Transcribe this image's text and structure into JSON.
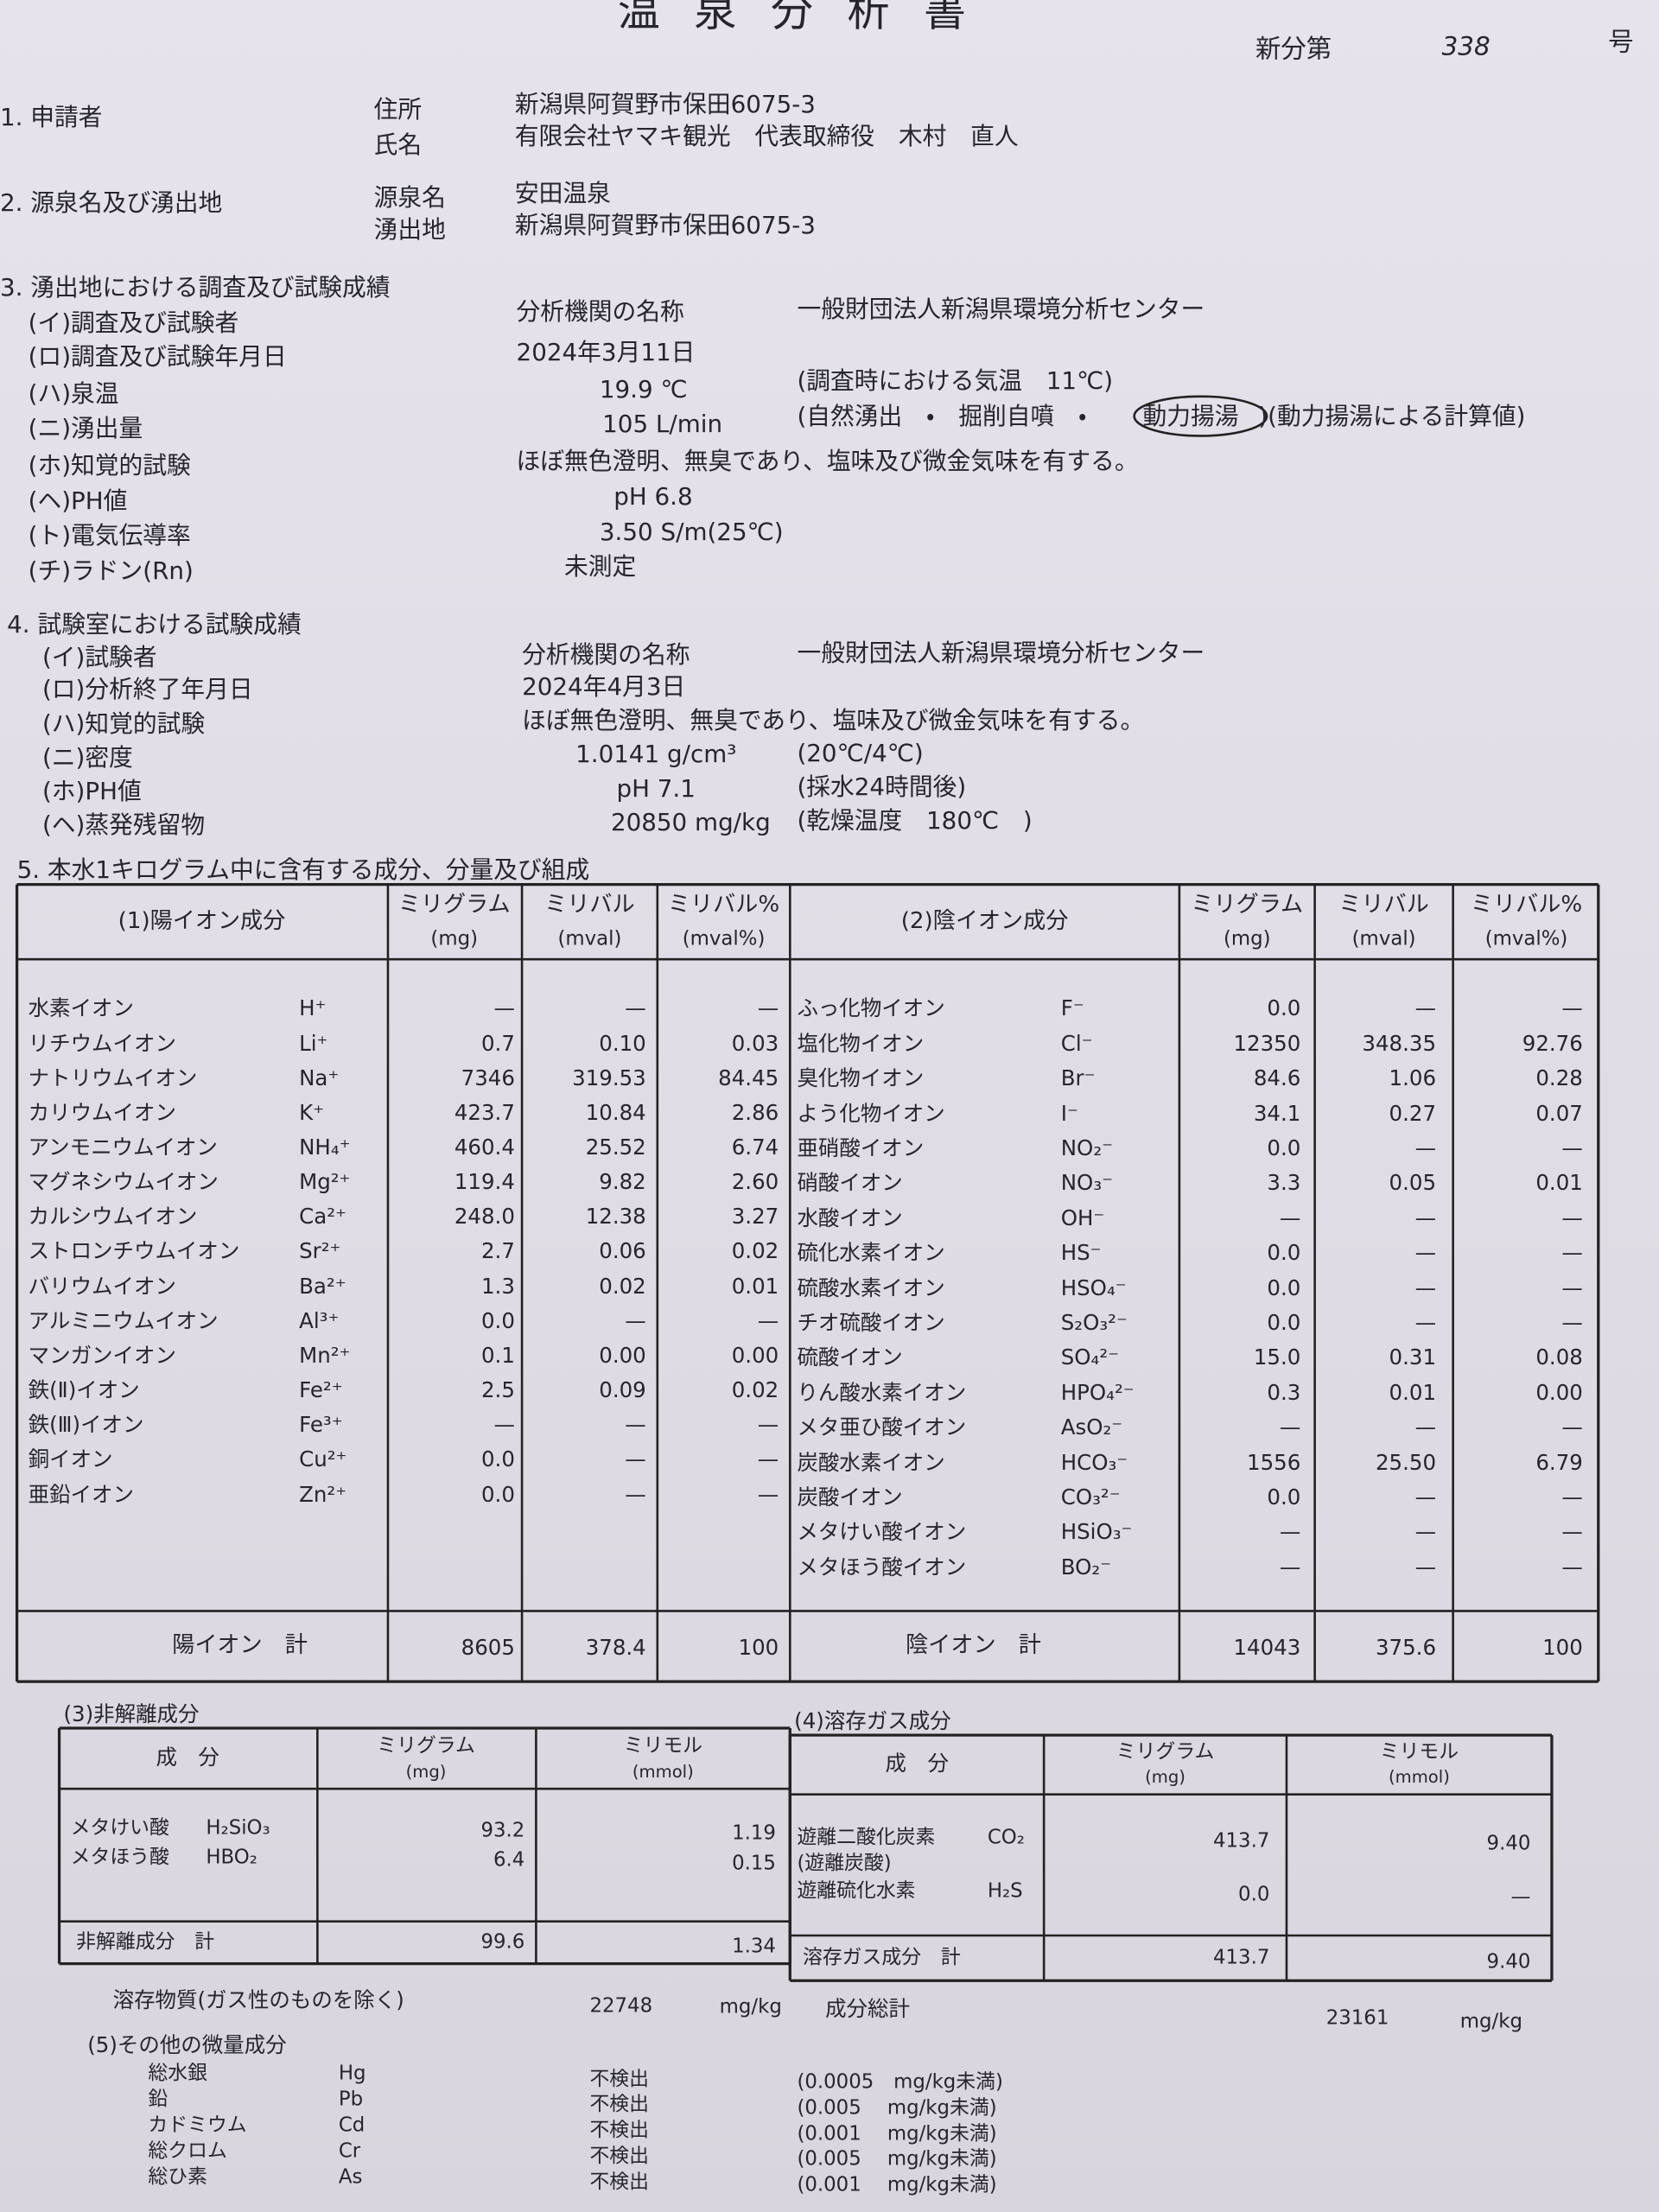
{
  "title": "温 泉 分 析 書",
  "number": {
    "prefix": "新分第",
    "value": "338",
    "suffix": "号"
  },
  "applicant": {
    "heading": "1. 申請者",
    "rows": [
      {
        "label": "住所",
        "value": "新潟県阿賀野市保田6075-3"
      },
      {
        "label": "氏名",
        "value": "有限会社ヤマキ観光　代表取締役　木村　直人"
      }
    ]
  },
  "spring": {
    "heading": "2. 源泉名及び湧出地",
    "rows": [
      {
        "label": "源泉名",
        "value": "安田温泉"
      },
      {
        "label": "湧出地",
        "value": "新潟県阿賀野市保田6075-3"
      }
    ]
  },
  "field_test": {
    "heading": "3. 湧出地における調査及び試験成績",
    "rows": [
      {
        "label": "(イ)調査及び試験者",
        "value": "分析機関の名称",
        "note": "一般財団法人新潟県環境分析センター"
      },
      {
        "label": "(ロ)調査及び試験年月日",
        "value": "2024年3月11日"
      },
      {
        "label": "(ハ)泉温",
        "value": "19.9 ℃",
        "note": "(調査時における気温　11℃)"
      },
      {
        "label": "(ニ)湧出量",
        "value": "105 L/min",
        "note": "(自然湧出　・　掘削自噴　・",
        "circled": "動力揚湯",
        "note_after": ")(動力揚湯による計算値)"
      },
      {
        "label": "(ホ)知覚的試験",
        "value": "ほぼ無色澄明、無臭であり、塩味及び微金気味を有する。"
      },
      {
        "label": "(ヘ)PH値",
        "value": "pH 6.8"
      },
      {
        "label": "(ト)電気伝導率",
        "value": "3.50 S/m(25℃)"
      },
      {
        "label": "(チ)ラドン(Rn)",
        "value": "未測定"
      }
    ]
  },
  "lab_test": {
    "heading": "4. 試験室における試験成績",
    "rows": [
      {
        "label": "(イ)試験者",
        "value": "分析機関の名称",
        "note": "一般財団法人新潟県環境分析センター"
      },
      {
        "label": "(ロ)分析終了年月日",
        "value": "2024年4月3日"
      },
      {
        "label": "(ハ)知覚的試験",
        "value": "ほぼ無色澄明、無臭であり、塩味及び微金気味を有する。"
      },
      {
        "label": "(ニ)密度",
        "value": "1.0141 g/cm³",
        "note": "(20℃/4℃)"
      },
      {
        "label": "(ホ)PH値",
        "value": "pH 7.1",
        "note": "(採水24時間後)"
      },
      {
        "label": "(ヘ)蒸発残留物",
        "value": "20850 mg/kg",
        "note": "(乾燥温度　180℃　)"
      }
    ]
  },
  "composition": {
    "heading": "5. 本水1キログラム中に含有する成分、分量及び組成",
    "cations": {
      "heading": "(1)陽イオン成分",
      "columns": [
        {
          "title": "ミリグラム",
          "unit": "(mg)"
        },
        {
          "title": "ミリバル",
          "unit": "(mval)"
        },
        {
          "title": "ミリバル%",
          "unit": "(mval%)"
        }
      ],
      "rows": [
        [
          "水素イオン",
          "H⁺",
          "—",
          "—",
          "—"
        ],
        [
          "リチウムイオン",
          "Li⁺",
          "0.7",
          "0.10",
          "0.03"
        ],
        [
          "ナトリウムイオン",
          "Na⁺",
          "7346",
          "319.53",
          "84.45"
        ],
        [
          "カリウムイオン",
          "K⁺",
          "423.7",
          "10.84",
          "2.86"
        ],
        [
          "アンモニウムイオン",
          "NH₄⁺",
          "460.4",
          "25.52",
          "6.74"
        ],
        [
          "マグネシウムイオン",
          "Mg²⁺",
          "119.4",
          "9.82",
          "2.60"
        ],
        [
          "カルシウムイオン",
          "Ca²⁺",
          "248.0",
          "12.38",
          "3.27"
        ],
        [
          "ストロンチウムイオン",
          "Sr²⁺",
          "2.7",
          "0.06",
          "0.02"
        ],
        [
          "バリウムイオン",
          "Ba²⁺",
          "1.3",
          "0.02",
          "0.01"
        ],
        [
          "アルミニウムイオン",
          "Al³⁺",
          "0.0",
          "—",
          "—"
        ],
        [
          "マンガンイオン",
          "Mn²⁺",
          "0.1",
          "0.00",
          "0.00"
        ],
        [
          "鉄(Ⅱ)イオン",
          "Fe²⁺",
          "2.5",
          "0.09",
          "0.02"
        ],
        [
          "鉄(Ⅲ)イオン",
          "Fe³⁺",
          "—",
          "—",
          "—"
        ],
        [
          "銅イオン",
          "Cu²⁺",
          "0.0",
          "—",
          "—"
        ],
        [
          "亜鉛イオン",
          "Zn²⁺",
          "0.0",
          "—",
          "—"
        ]
      ],
      "total": [
        "陽イオン　計",
        "8605",
        "378.4",
        "100"
      ]
    },
    "anions": {
      "heading": "(2)陰イオン成分",
      "columns": [
        {
          "title": "ミリグラム",
          "unit": "(mg)"
        },
        {
          "title": "ミリバル",
          "unit": "(mval)"
        },
        {
          "title": "ミリバル%",
          "unit": "(mval%)"
        }
      ],
      "rows": [
        [
          "ふっ化物イオン",
          "F⁻",
          "0.0",
          "—",
          "—"
        ],
        [
          "塩化物イオン",
          "Cl⁻",
          "12350",
          "348.35",
          "92.76"
        ],
        [
          "臭化物イオン",
          "Br⁻",
          "84.6",
          "1.06",
          "0.28"
        ],
        [
          "よう化物イオン",
          "I⁻",
          "34.1",
          "0.27",
          "0.07"
        ],
        [
          "亜硝酸イオン",
          "NO₂⁻",
          "0.0",
          "—",
          "—"
        ],
        [
          "硝酸イオン",
          "NO₃⁻",
          "3.3",
          "0.05",
          "0.01"
        ],
        [
          "水酸イオン",
          "OH⁻",
          "—",
          "—",
          "—"
        ],
        [
          "硫化水素イオン",
          "HS⁻",
          "0.0",
          "—",
          "—"
        ],
        [
          "硫酸水素イオン",
          "HSO₄⁻",
          "0.0",
          "—",
          "—"
        ],
        [
          "チオ硫酸イオン",
          "S₂O₃²⁻",
          "0.0",
          "—",
          "—"
        ],
        [
          "硫酸イオン",
          "SO₄²⁻",
          "15.0",
          "0.31",
          "0.08"
        ],
        [
          "りん酸水素イオン",
          "HPO₄²⁻",
          "0.3",
          "0.01",
          "0.00"
        ],
        [
          "メタ亜ひ酸イオン",
          "AsO₂⁻",
          "—",
          "—",
          "—"
        ],
        [
          "炭酸水素イオン",
          "HCO₃⁻",
          "1556",
          "25.50",
          "6.79"
        ],
        [
          "炭酸イオン",
          "CO₃²⁻",
          "0.0",
          "—",
          "—"
        ],
        [
          "メタけい酸イオン",
          "HSiO₃⁻",
          "—",
          "—",
          "—"
        ],
        [
          "メタほう酸イオン",
          "BO₂⁻",
          "—",
          "—",
          "—"
        ]
      ],
      "total": [
        "陰イオン　計",
        "14043",
        "375.6",
        "100"
      ]
    }
  },
  "undissociated": {
    "heading": "(3)非解離成分",
    "name_header": "成　分",
    "columns": [
      {
        "title": "ミリグラム",
        "unit": "(mg)"
      },
      {
        "title": "ミリモル",
        "unit": "(mmol)"
      }
    ],
    "rows": [
      {
        "name": "メタけい酸",
        "formula": "H₂SiO₃",
        "mg": "93.2",
        "mmol": "1.19"
      },
      {
        "name": "メタほう酸",
        "formula": "HBO₂",
        "mg": "6.4",
        "mmol": "0.15"
      }
    ],
    "total": {
      "label": "非解離成分　計",
      "mg": "99.6",
      "mmol": "1.34"
    }
  },
  "dissolved_gas": {
    "heading": "(4)溶存ガス成分",
    "name_header": "成　分",
    "columns": [
      {
        "title": "ミリグラム",
        "unit": "(mg)"
      },
      {
        "title": "ミリモル",
        "unit": "(mmol)"
      }
    ],
    "rows": [
      {
        "name": "遊離二酸化炭素",
        "formula": "CO₂",
        "sub": "(遊離炭酸)",
        "mg": "413.7",
        "mmol": "9.40"
      },
      {
        "name": "遊離硫化水素",
        "formula": "H₂S",
        "mg": "0.0",
        "mmol": "—"
      }
    ],
    "total": {
      "label": "溶存ガス成分　計",
      "mg": "413.7",
      "mmol": "9.40"
    }
  },
  "summary": {
    "dissolved_label": "溶存物質(ガス性のものを除く)",
    "dissolved_value": "22748",
    "dissolved_unit": "mg/kg",
    "total_label": "成分総計",
    "total_value": "23161",
    "total_unit": "mg/kg"
  },
  "trace": {
    "heading": "(5)その他の微量成分",
    "rows": [
      {
        "name": "総水銀",
        "symbol": "Hg",
        "result": "不検出",
        "note": "(0.0005　mg/kg未満)"
      },
      {
        "name": "鉛",
        "symbol": "Pb",
        "result": "不検出",
        "note": "(0.005　 mg/kg未満)"
      },
      {
        "name": "カドミウム",
        "symbol": "Cd",
        "result": "不検出",
        "note": "(0.001　 mg/kg未満)"
      },
      {
        "name": "総クロム",
        "symbol": "Cr",
        "result": "不検出",
        "note": "(0.005　 mg/kg未満)"
      },
      {
        "name": "総ひ素",
        "symbol": "As",
        "result": "不検出",
        "note": "(0.001　 mg/kg未満)"
      }
    ]
  }
}
